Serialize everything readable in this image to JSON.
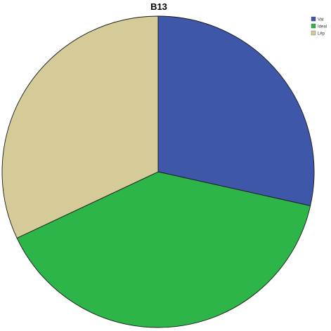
{
  "chart_data": {
    "type": "pie",
    "title": "B13",
    "categories": [
      "Vat",
      "Ideal",
      "Lêp"
    ],
    "values": [
      28.5,
      39.5,
      32.0
    ],
    "colors": [
      "#3f57a8",
      "#2db54a",
      "#d4cb98"
    ],
    "start_angle_deg": 0,
    "direction": "clockwise",
    "legend_position": "top-right",
    "legend_labels_legible": false
  }
}
